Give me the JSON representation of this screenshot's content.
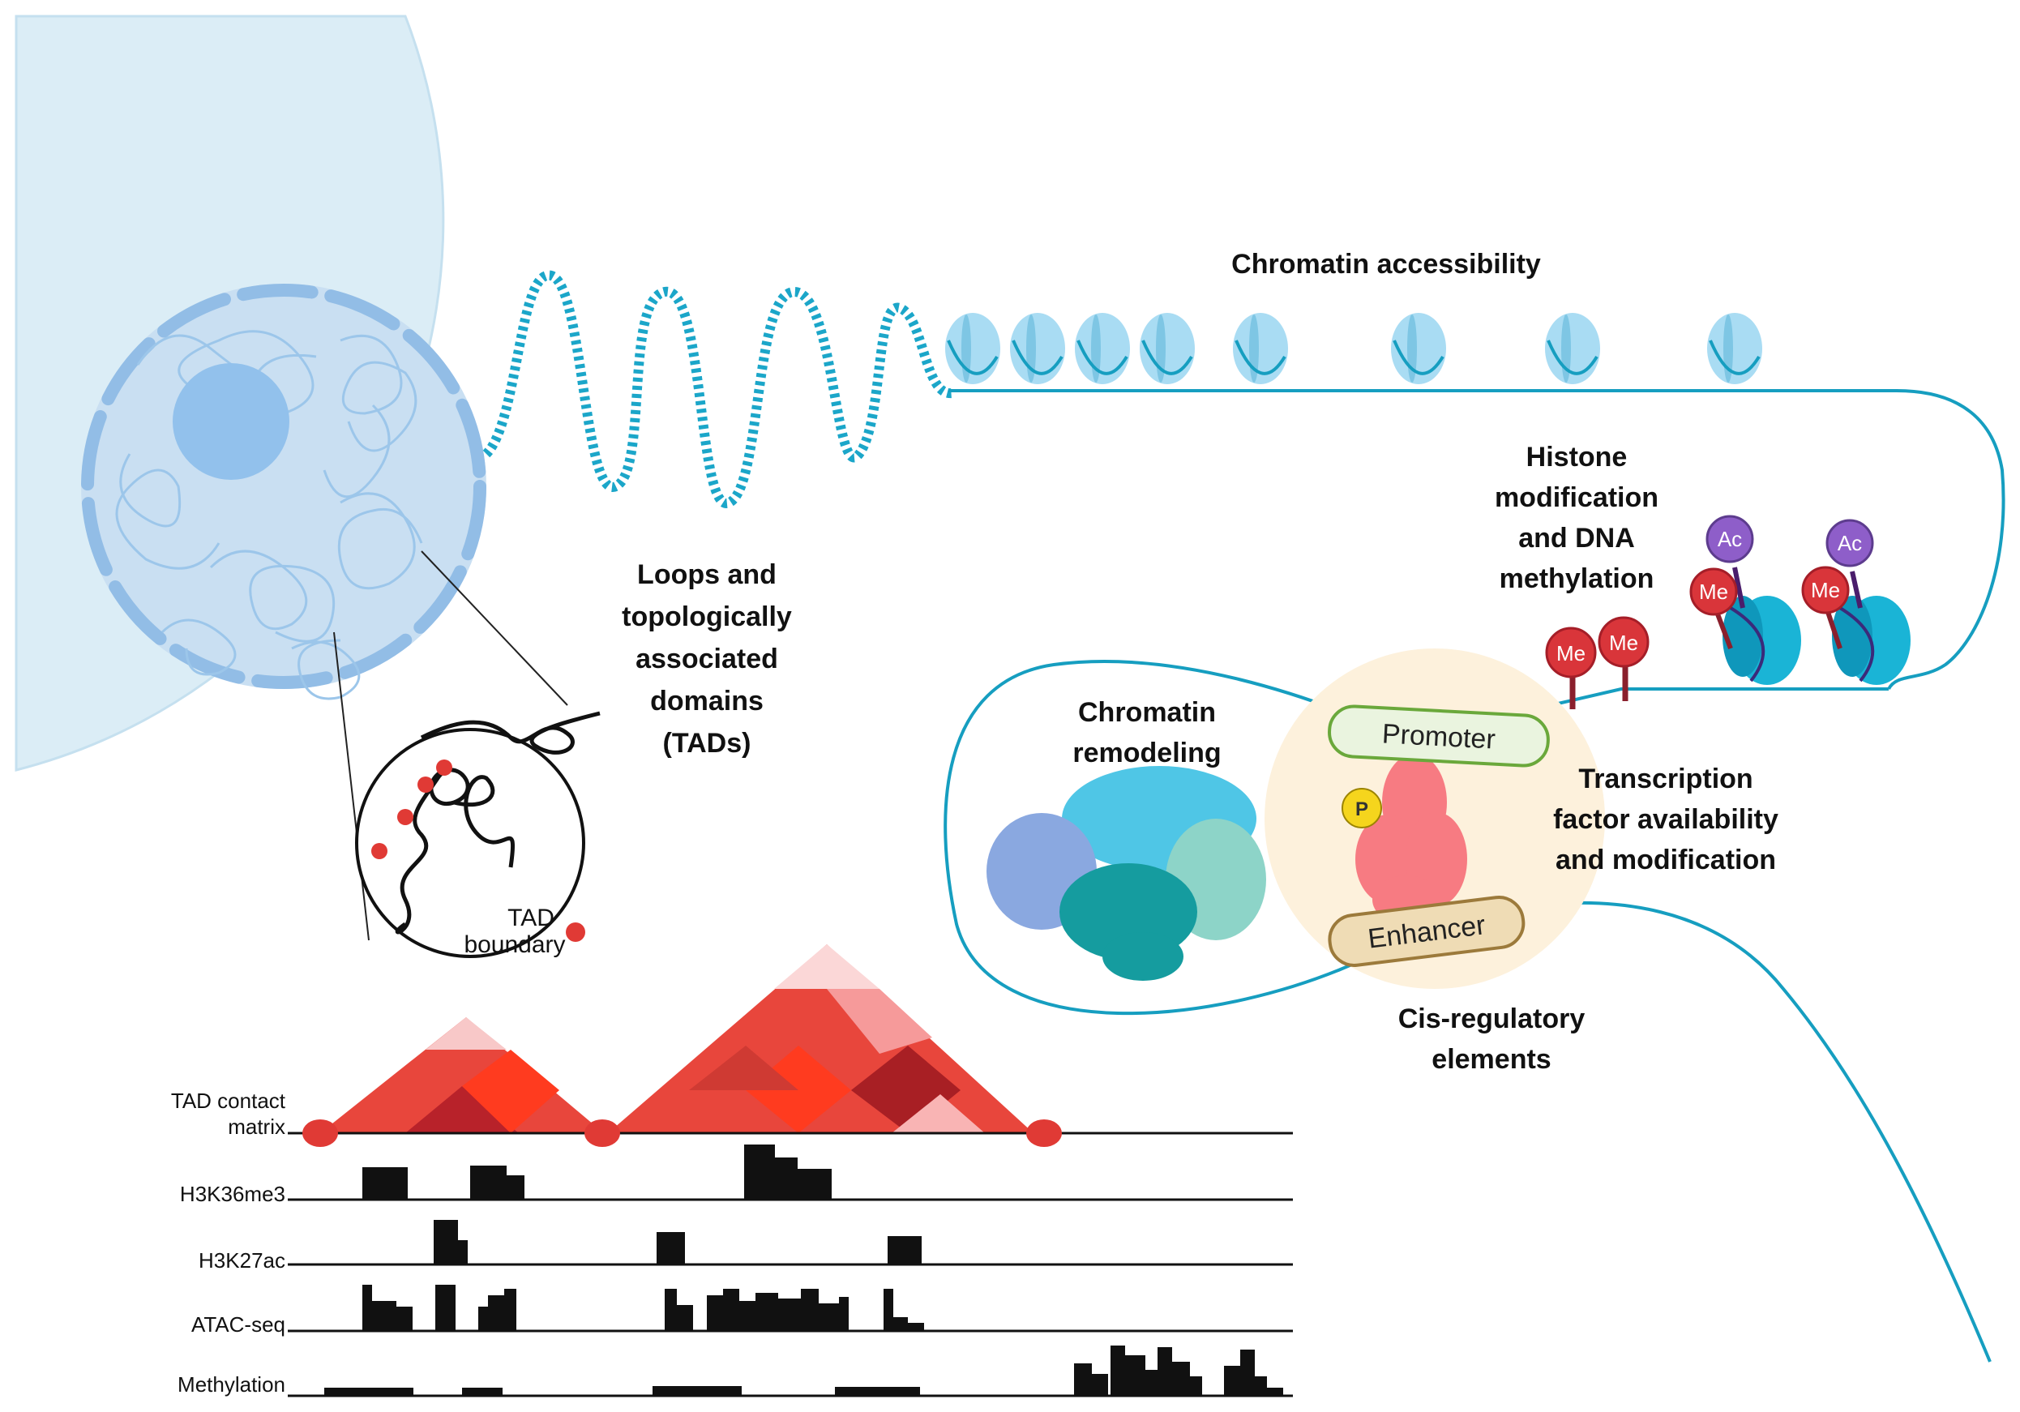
{
  "labels": {
    "chromatin_accessibility": "Chromatin accessibility",
    "histone_modification": [
      "Histone",
      "modification",
      "and DNA",
      "methylation"
    ],
    "loops_tads": [
      "Loops and",
      "topologically",
      "associated",
      "domains",
      "(TADs)"
    ],
    "chromatin_remodeling": [
      "Chromatin",
      "remodeling"
    ],
    "transcription_factor": [
      "Transcription",
      "factor availability",
      "and modification"
    ],
    "cis_regulatory": [
      "Cis-regulatory",
      "elements"
    ],
    "tad_boundary": [
      "TAD",
      "boundary"
    ],
    "promoter": "Promoter",
    "enhancer": "Enhancer",
    "me": "Me",
    "ac": "Ac",
    "p": "P"
  },
  "tracks": {
    "tad_contact_matrix": [
      "TAD contact",
      "matrix"
    ],
    "h3k36me3": "H3K36me3",
    "h3k27ac": "H3K27ac",
    "atac_seq": "ATAC-seq",
    "methylation": "Methylation"
  },
  "colors": {
    "cell": "#d9ecf6",
    "nucleus": "#c6def3",
    "nucleolus": "#93c2ec",
    "dna_line": "#1b9ebf",
    "nucleosome": "#a7dcf4",
    "me_mark": "#d9353a",
    "ac_mark": "#8e5ec9",
    "promoter_fill": "#e7f3dc",
    "enhancer_fill": "#efdcb5",
    "cre_halo": "#fdf1dc",
    "tad_red": "#e83c35"
  },
  "icons": [
    "cell-nucleus-icon",
    "nucleosome-icon",
    "histone-mark-icon",
    "remodeling-complex-icon",
    "transcription-factor-icon",
    "phosphate-icon",
    "tad-zoom-icon"
  ]
}
